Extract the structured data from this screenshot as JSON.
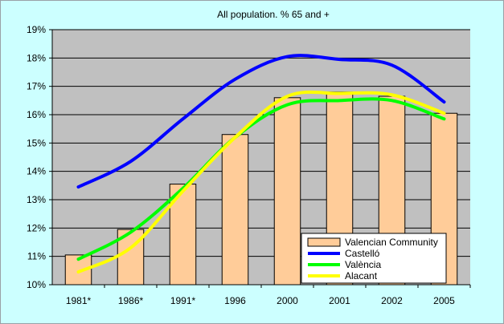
{
  "chart_data": {
    "type": "bar",
    "title": "All population. % 65 and +",
    "xlabel": "",
    "ylabel": "",
    "categories": [
      "1981*",
      "1986*",
      "1991*",
      "1996",
      "2000",
      "2001",
      "2002",
      "2005"
    ],
    "ylim": [
      10,
      19
    ],
    "yticks": [
      "10%",
      "11%",
      "12%",
      "13%",
      "14%",
      "15%",
      "16%",
      "17%",
      "18%",
      "19%"
    ],
    "grid": true,
    "legend_position": "bottom-right",
    "series": [
      {
        "name": "Valencian Community",
        "kind": "bar",
        "color": "#ffcc99",
        "values": [
          11.05,
          11.95,
          13.55,
          15.3,
          16.6,
          16.8,
          16.65,
          16.05
        ]
      },
      {
        "name": "Castelló",
        "kind": "line",
        "color": "#0000ff",
        "values": [
          13.45,
          14.35,
          15.85,
          17.25,
          18.05,
          17.95,
          17.75,
          16.45
        ]
      },
      {
        "name": "València",
        "kind": "line",
        "color": "#00ff00",
        "values": [
          10.9,
          11.85,
          13.4,
          15.2,
          16.35,
          16.5,
          16.5,
          15.85
        ]
      },
      {
        "name": "Alacant",
        "kind": "line",
        "color": "#ffff00",
        "values": [
          10.45,
          11.3,
          13.3,
          15.2,
          16.65,
          16.75,
          16.7,
          16.05
        ]
      }
    ]
  }
}
